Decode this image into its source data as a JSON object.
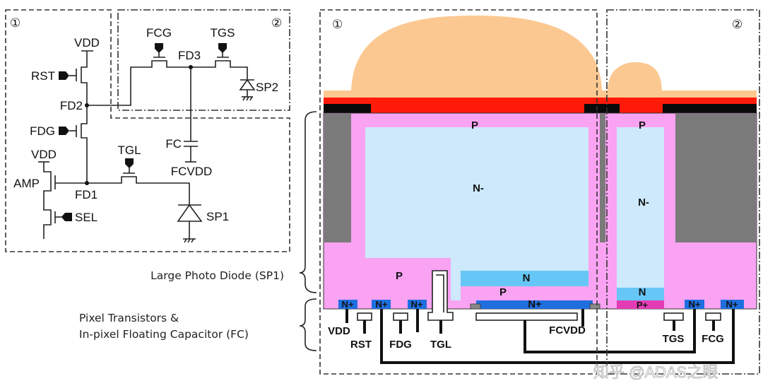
{
  "circuit": {
    "region1": "①",
    "region2": "②",
    "labels": {
      "vdd_top": "VDD",
      "rst": "RST",
      "fd2": "FD2",
      "fdg": "FDG",
      "vdd_amp": "VDD",
      "amp": "AMP",
      "fd1": "FD1",
      "sel": "SEL",
      "tgl": "TGL",
      "sp1": "SP1",
      "fcg": "FCG",
      "tgs": "TGS",
      "fd3": "FD3",
      "sp2": "SP2",
      "fc": "FC",
      "fcvdd": "FCVDD"
    }
  },
  "cross_section": {
    "region1": "①",
    "region2": "②",
    "regions": {
      "p_top_large": "P",
      "nminus_large": "N-",
      "p_left": "P",
      "n_large": "N",
      "p_mid": "P",
      "nplus_fc": "N+",
      "p_top_small": "P",
      "nminus_small": "N-",
      "n_small": "N",
      "pplus_small": "P+",
      "nplus": "N+"
    },
    "terminals": {
      "vdd": "VDD",
      "rst": "RST",
      "fdg": "FDG",
      "tgl": "TGL",
      "fcvdd": "FCVDD",
      "tgs": "TGS",
      "fcg": "FCG"
    }
  },
  "annotations": {
    "large_pd": "Large Photo Diode (SP1)",
    "pixel_tr_line1": "Pixel Transistors &",
    "pixel_tr_line2": "In-pixel Floating Capacitor (FC)"
  },
  "watermark": "知乎 @ADAS之眼",
  "colors": {
    "lens": "#fcc891",
    "color_filter": "#ff1a0a",
    "light_shield": "#0a0a0a",
    "isolation": "#7a7a7a",
    "p_well": "#f9a3f2",
    "n_minus": "#cde9fb",
    "n_layer": "#66c7f6",
    "n_plus": "#1f6fdf",
    "p_plus": "#e43cb4"
  }
}
